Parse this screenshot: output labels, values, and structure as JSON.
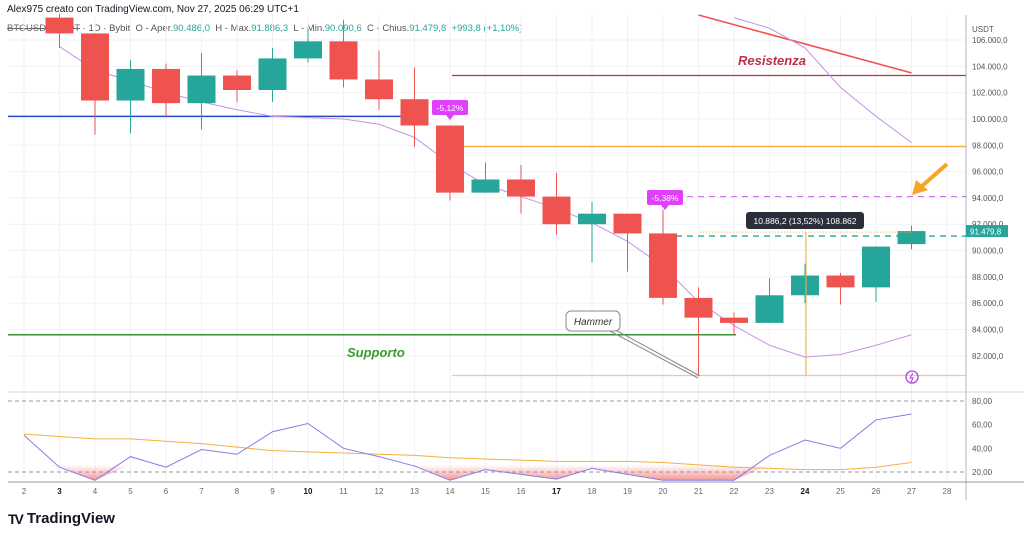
{
  "header": {
    "credit": "Alex975 creato con TradingView.com, Nov 27, 2025 06:29 UTC+1"
  },
  "legend": {
    "symbol": "BTCUSDT SPOT",
    "interval": "1D",
    "exchange": "Bybit",
    "open_label": "O - Aper.",
    "open": "90.486,0",
    "high_label": "H - Max.",
    "high": "91.886,3",
    "low_label": "L - Min.",
    "low": "90.090,6",
    "close_label": "C - Chius.",
    "close": "91.479,8",
    "change": "+993,8 (+1,10%)"
  },
  "logo": {
    "text": "TradingView"
  },
  "colors": {
    "up": "#26a69a",
    "down": "#ef5350",
    "ma": "#c792e6",
    "oscillator": "#8c7ae6",
    "signal": "#f5b041"
  },
  "chart_data": {
    "type": "candlestick",
    "currency": "USDT",
    "price_axis": {
      "range": [
        80000,
        107000
      ],
      "ticks": [
        "106.000,0",
        "104.000,0",
        "102.000,0",
        "100.000,0",
        "98.000,0",
        "96.000,0",
        "94.000,0",
        "92.000,0",
        "90.000,0",
        "88.000,0",
        "86.000,0",
        "84.000,0",
        "82.000,0"
      ],
      "tick_values": [
        106000,
        104000,
        102000,
        100000,
        98000,
        96000,
        94000,
        92000,
        90000,
        88000,
        86000,
        84000,
        82000
      ]
    },
    "x_axis": {
      "ticks": [
        "2",
        "3",
        "4",
        "5",
        "6",
        "7",
        "8",
        "9",
        "10",
        "11",
        "12",
        "13",
        "14",
        "15",
        "16",
        "17",
        "18",
        "19",
        "20",
        "21",
        "22",
        "23",
        "24",
        "25",
        "26",
        "27",
        "28"
      ],
      "bold_ticks": [
        "3",
        "10",
        "17",
        "24"
      ]
    },
    "candles": [
      {
        "day": 3,
        "o": 107700,
        "h": 108000,
        "l": 105400,
        "c": 106500
      },
      {
        "day": 4,
        "o": 106500,
        "h": 106500,
        "l": 98800,
        "c": 101400
      },
      {
        "day": 5,
        "o": 101400,
        "h": 104500,
        "l": 98900,
        "c": 103800
      },
      {
        "day": 6,
        "o": 103800,
        "h": 104200,
        "l": 100100,
        "c": 101200
      },
      {
        "day": 7,
        "o": 101200,
        "h": 105000,
        "l": 99200,
        "c": 103300
      },
      {
        "day": 8,
        "o": 103300,
        "h": 103700,
        "l": 101300,
        "c": 102200
      },
      {
        "day": 9,
        "o": 102200,
        "h": 105400,
        "l": 101300,
        "c": 104600
      },
      {
        "day": 10,
        "o": 104600,
        "h": 106900,
        "l": 104300,
        "c": 105900
      },
      {
        "day": 11,
        "o": 105900,
        "h": 107500,
        "l": 102400,
        "c": 103000
      },
      {
        "day": 12,
        "o": 103000,
        "h": 105200,
        "l": 100700,
        "c": 101500
      },
      {
        "day": 13,
        "o": 101500,
        "h": 103900,
        "l": 97900,
        "c": 99500
      },
      {
        "day": 14,
        "o": 99500,
        "h": 99500,
        "l": 93800,
        "c": 94400
      },
      {
        "day": 15,
        "o": 94400,
        "h": 96700,
        "l": 94400,
        "c": 95400
      },
      {
        "day": 16,
        "o": 95400,
        "h": 96500,
        "l": 92800,
        "c": 94100
      },
      {
        "day": 17,
        "o": 94100,
        "h": 95900,
        "l": 91200,
        "c": 92000
      },
      {
        "day": 18,
        "o": 92000,
        "h": 93700,
        "l": 89100,
        "c": 92800
      },
      {
        "day": 19,
        "o": 92800,
        "h": 92800,
        "l": 88400,
        "c": 91300
      },
      {
        "day": 20,
        "o": 91300,
        "h": 93100,
        "l": 85900,
        "c": 86400
      },
      {
        "day": 21,
        "o": 86400,
        "h": 87200,
        "l": 80500,
        "c": 84900
      },
      {
        "day": 22,
        "o": 84900,
        "h": 85300,
        "l": 83600,
        "c": 84500
      },
      {
        "day": 23,
        "o": 84500,
        "h": 87900,
        "l": 84500,
        "c": 86600
      },
      {
        "day": 24,
        "o": 86600,
        "h": 89000,
        "l": 86000,
        "c": 88100
      },
      {
        "day": 25,
        "o": 88100,
        "h": 88300,
        "l": 85900,
        "c": 87200
      },
      {
        "day": 26,
        "o": 87200,
        "h": 90300,
        "l": 86100,
        "c": 90300
      },
      {
        "day": 27,
        "o": 90486.0,
        "h": 91886.3,
        "l": 90090.6,
        "c": 91479.8
      }
    ],
    "moving_average": [
      [
        3,
        105500
      ],
      [
        4,
        103700
      ],
      [
        5,
        102900
      ],
      [
        6,
        102000
      ],
      [
        7,
        101300
      ],
      [
        8,
        100700
      ],
      [
        9,
        100200
      ],
      [
        10,
        100100
      ],
      [
        11,
        100000
      ],
      [
        12,
        99600
      ],
      [
        13,
        98600
      ],
      [
        14,
        96600
      ],
      [
        15,
        95000
      ],
      [
        16,
        94100
      ],
      [
        17,
        93200
      ],
      [
        18,
        92100
      ],
      [
        19,
        90700
      ],
      [
        20,
        88800
      ],
      [
        21,
        86100
      ],
      [
        22,
        84300
      ],
      [
        23,
        82800
      ],
      [
        24,
        81900
      ],
      [
        25,
        82100
      ],
      [
        26,
        82800
      ],
      [
        27,
        83600
      ]
    ],
    "upper_line": [
      [
        22,
        107700
      ],
      [
        23,
        106900
      ],
      [
        24,
        105400
      ],
      [
        25,
        102400
      ],
      [
        26,
        100200
      ],
      [
        27,
        98200
      ]
    ],
    "levels": {
      "blue": 100200,
      "resistance": 103300,
      "orange": 97900,
      "purple_dashed": 94100,
      "teal_dashed": 91100,
      "support": 83600,
      "gray": 80500
    },
    "trendline": [
      [
        21,
        107900
      ],
      [
        27,
        103500
      ]
    ],
    "annotations": {
      "resistance_label": "Resistenza",
      "support_label": "Supporto",
      "hammer_label": "Hammer",
      "drop1": "-5,12%",
      "drop2": "-5,38%",
      "measure": "10.886,2 (13,52%) 108.862",
      "last_price": "91.479,8"
    },
    "oscillator": {
      "ticks": [
        "80,00",
        "60,00",
        "40,00",
        "20,00"
      ],
      "tick_values": [
        80,
        60,
        40,
        20
      ],
      "bands": [
        80,
        20
      ],
      "main": [
        [
          2,
          51
        ],
        [
          3,
          24
        ],
        [
          4,
          13
        ],
        [
          5,
          33
        ],
        [
          6,
          24
        ],
        [
          7,
          39
        ],
        [
          8,
          35
        ],
        [
          9,
          54
        ],
        [
          10,
          61
        ],
        [
          11,
          40
        ],
        [
          12,
          33
        ],
        [
          13,
          25
        ],
        [
          14,
          13
        ],
        [
          15,
          22
        ],
        [
          16,
          18
        ],
        [
          17,
          14
        ],
        [
          18,
          23
        ],
        [
          19,
          18
        ],
        [
          20,
          12
        ],
        [
          21,
          11
        ],
        [
          22,
          11
        ],
        [
          23,
          34
        ],
        [
          24,
          47
        ],
        [
          25,
          40
        ],
        [
          26,
          64
        ],
        [
          27,
          69
        ]
      ],
      "signal": [
        [
          2,
          52
        ],
        [
          3,
          50
        ],
        [
          4,
          48
        ],
        [
          5,
          48
        ],
        [
          6,
          46
        ],
        [
          7,
          44
        ],
        [
          8,
          41
        ],
        [
          9,
          38
        ],
        [
          10,
          37
        ],
        [
          11,
          36
        ],
        [
          12,
          35
        ],
        [
          13,
          34
        ],
        [
          14,
          32
        ],
        [
          15,
          31
        ],
        [
          16,
          30
        ],
        [
          17,
          29
        ],
        [
          18,
          29
        ],
        [
          19,
          29
        ],
        [
          20,
          28
        ],
        [
          21,
          26
        ],
        [
          22,
          24
        ],
        [
          23,
          23
        ],
        [
          24,
          22
        ],
        [
          25,
          22
        ],
        [
          26,
          24
        ],
        [
          27,
          28
        ]
      ]
    }
  }
}
